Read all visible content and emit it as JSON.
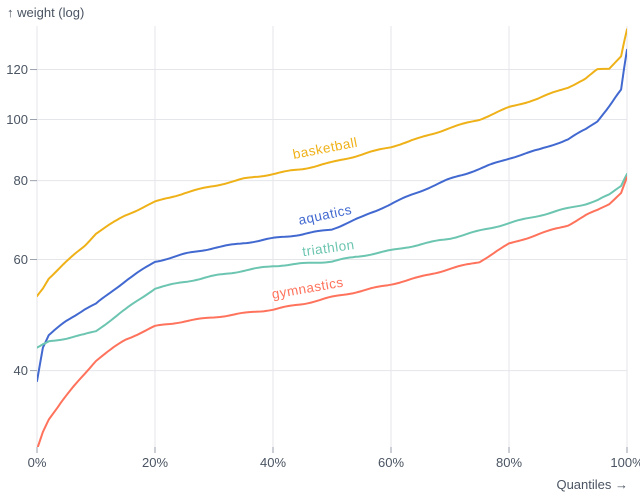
{
  "chart_data": {
    "type": "line",
    "title": "",
    "y_axis_title": "↑ weight (log)",
    "x_axis_title": "Quantiles →",
    "y_scale": "log",
    "x_tick_labels": [
      "0%",
      "20%",
      "40%",
      "60%",
      "80%",
      "100%"
    ],
    "x_tick_values": [
      0,
      20,
      40,
      60,
      80,
      100
    ],
    "y_tick_values": [
      40,
      60,
      80,
      100,
      120
    ],
    "y_domain": [
      30.2,
      141
    ],
    "x_domain_pct": [
      0,
      100
    ],
    "grid": true,
    "legend": "inline-line-labels",
    "quantiles_pct": [
      0,
      1,
      2,
      5,
      8,
      10,
      15,
      20,
      25,
      30,
      35,
      40,
      45,
      50,
      55,
      60,
      65,
      70,
      75,
      80,
      85,
      90,
      93,
      95,
      97,
      99,
      100
    ],
    "series": [
      {
        "name": "basketball",
        "label": "basketball",
        "color": "#efb118",
        "label_anchor_pct": 49,
        "label_rotate": -11,
        "label_dy": -11,
        "values": [
          52.5,
          54,
          56,
          59.5,
          63,
          66,
          70.5,
          74,
          76.5,
          78.5,
          80.5,
          82,
          83.5,
          85.5,
          88,
          90.5,
          93.5,
          97,
          100,
          104.5,
          108,
          112.5,
          116,
          120,
          120.5,
          126,
          139
        ]
      },
      {
        "name": "aquatics",
        "label": "aquatics",
        "color": "#4269d0",
        "label_anchor_pct": 49,
        "label_rotate": -12,
        "label_dy": -11,
        "values": [
          38.5,
          43.5,
          45.5,
          48,
          50,
          51,
          55.5,
          59.5,
          61.2,
          62.6,
          63.7,
          64.8,
          65.8,
          67,
          70,
          73.5,
          77,
          80.5,
          83.5,
          86.8,
          89.5,
          93,
          96.5,
          99.5,
          105,
          111.5,
          129
        ]
      },
      {
        "name": "triathlon",
        "label": "triathlon",
        "color": "#6cc5b0",
        "label_anchor_pct": 49.5,
        "label_rotate": -8,
        "label_dy": -9,
        "values": [
          43.5,
          44,
          44.5,
          45,
          45.6,
          46.2,
          50,
          54,
          55.3,
          56.5,
          57.6,
          58.6,
          59.1,
          59.6,
          60.8,
          62,
          63.4,
          64.8,
          66.6,
          68.5,
          70.4,
          72.3,
          73.5,
          74.5,
          76,
          78.5,
          82
        ]
      },
      {
        "name": "gymnastics",
        "label": "gymnastics",
        "color": "#ff725c",
        "label_anchor_pct": 46,
        "label_rotate": -10,
        "label_dy": -10,
        "values": [
          30,
          32,
          33.5,
          36.5,
          39.5,
          41.5,
          44.8,
          47,
          47.9,
          48.6,
          49.3,
          50,
          51,
          52.3,
          53.5,
          54.8,
          56.3,
          58,
          59.5,
          63.5,
          65.8,
          68,
          70.5,
          71.8,
          73.5,
          76.5,
          81
        ]
      }
    ],
    "style_colors": {
      "grid": "#e4e6ea",
      "tick": "#9aa2ae",
      "axis_text": "#4a5462",
      "background": "#ffffff"
    }
  }
}
